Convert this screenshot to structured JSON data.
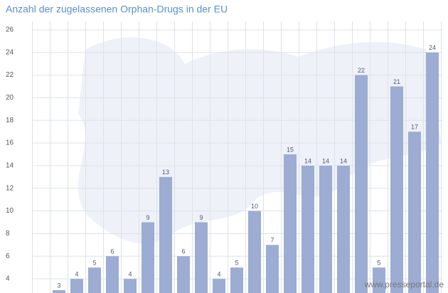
{
  "chart_data": {
    "type": "bar",
    "title": "Anzahl der zugelassenen Orphan-Drugs in der EU",
    "values": [
      3,
      4,
      5,
      6,
      4,
      9,
      13,
      6,
      9,
      4,
      5,
      10,
      7,
      15,
      14,
      14,
      14,
      22,
      5,
      21,
      17,
      24
    ],
    "color": "#9cacd2",
    "ylim": [
      2.75,
      26.75
    ],
    "yticks": [
      4,
      6,
      8,
      10,
      12,
      14,
      16,
      18,
      20,
      22,
      24,
      26
    ],
    "grid": true,
    "watermark": "www.presseportal.de"
  }
}
